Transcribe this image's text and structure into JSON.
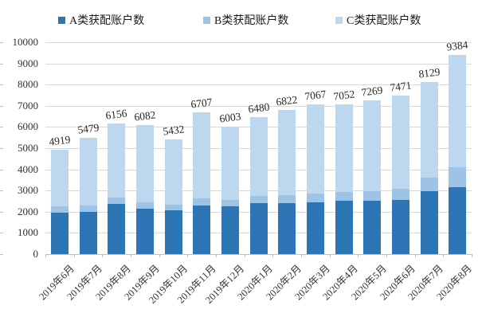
{
  "chart_data": {
    "type": "bar",
    "stacked": true,
    "title": "",
    "legend_position": "top",
    "grid": true,
    "categories": [
      "2019年6月",
      "2019年7月",
      "2019年8月",
      "2019年9月",
      "2019年10月",
      "2019年11月",
      "2019年12月",
      "2020年1月",
      "2020年2月",
      "2020年3月",
      "2020年4月",
      "2020年5月",
      "2020年6月",
      "2020年7月",
      "2020年8月"
    ],
    "series": [
      {
        "name": "A类获配账户数",
        "color": "#2E75B6",
        "values": [
          1950,
          2000,
          2380,
          2150,
          2070,
          2300,
          2250,
          2400,
          2410,
          2455,
          2520,
          2530,
          2550,
          2970,
          3150
        ]
      },
      {
        "name": "B类获配账户数",
        "color": "#9DC3E6",
        "values": [
          300,
          290,
          300,
          280,
          270,
          330,
          320,
          350,
          370,
          415,
          410,
          450,
          540,
          650,
          950
        ]
      },
      {
        "name": "C类获配账户数",
        "color": "#BDD7EE",
        "values": [
          2669,
          3189,
          3476,
          3652,
          3092,
          4077,
          3433,
          3730,
          4042,
          4197,
          4122,
          4289,
          4381,
          4509,
          5284
        ]
      }
    ],
    "totals": [
      4919,
      5479,
      6156,
      6082,
      5432,
      6707,
      6003,
      6480,
      6822,
      7067,
      7052,
      7269,
      7471,
      8129,
      9384
    ],
    "total_labels_shown": true,
    "xlabel": "",
    "ylabel": "",
    "ylim": [
      0,
      10000
    ],
    "ytick_interval": 1000,
    "yticks": [
      0,
      1000,
      2000,
      3000,
      4000,
      5000,
      6000,
      7000,
      8000,
      9000,
      10000
    ],
    "colors": {
      "gridline": "#D9D9D9",
      "axis": "#BFBFBF",
      "text": "#333333",
      "data_label": "#262626"
    }
  },
  "legend_x_positions": [
    73,
    255,
    421
  ]
}
